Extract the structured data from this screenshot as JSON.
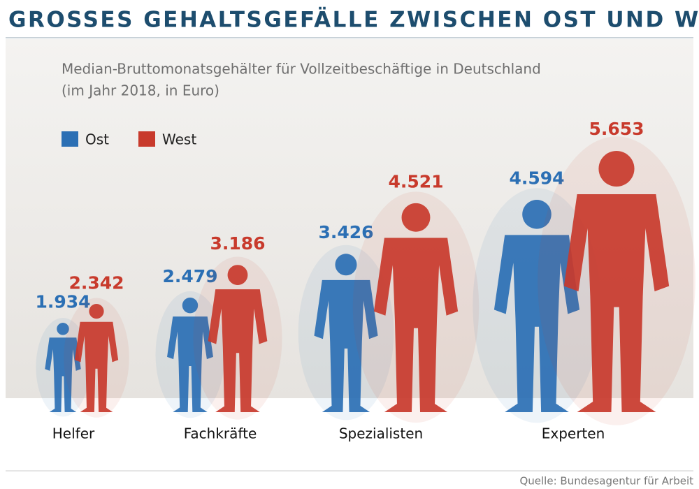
{
  "chart_data": {
    "type": "pictogram",
    "title": "GROSSES GEHALTSGEFÄLLE ZWISCHEN OST UND WEST",
    "subtitle": [
      "Median-Bruttomonatsgehälter für Vollzeitbeschäftige in Deutschland",
      "(im Jahr 2018, in Euro)"
    ],
    "categories": [
      "Helfer",
      "Fachkräfte",
      "Spezialisten",
      "Experten"
    ],
    "series": [
      {
        "name": "Ost",
        "color": "#2b6fb4",
        "values": [
          1934,
          2479,
          3426,
          4594
        ],
        "value_labels": [
          "1.934",
          "2.479",
          "3.426",
          "4.594"
        ]
      },
      {
        "name": "West",
        "color": "#c83a2c",
        "values": [
          2342,
          3186,
          4521,
          5653
        ],
        "value_labels": [
          "2.342",
          "3.186",
          "4.521",
          "5.653"
        ]
      }
    ],
    "source": "Quelle: Bundesagentur für Arbeit"
  }
}
